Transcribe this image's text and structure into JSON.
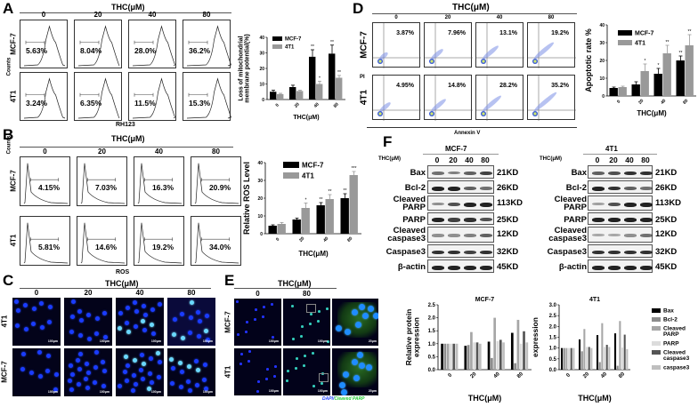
{
  "panels": {
    "A": {
      "label": "A",
      "title": "THC(μM)",
      "concentrations": [
        "0",
        "20",
        "40",
        "80"
      ],
      "rows": [
        {
          "name": "MCF-7",
          "values": [
            "5.63%",
            "8.04%",
            "28.0%",
            "36.2%"
          ]
        },
        {
          "name": "4T1",
          "values": [
            "3.24%",
            "6.35%",
            "11.5%",
            "15.3%"
          ]
        }
      ],
      "y_axis": "Counts",
      "x_axis": "RH123"
    },
    "B": {
      "label": "B",
      "title": "THC(μM)",
      "concentrations": [
        "0",
        "20",
        "40",
        "80"
      ],
      "rows": [
        {
          "name": "MCF-7",
          "values": [
            "4.15%",
            "7.03%",
            "16.3%",
            "20.9%"
          ]
        },
        {
          "name": "4T1",
          "values": [
            "5.81%",
            "14.6%",
            "19.2%",
            "34.0%"
          ]
        }
      ],
      "y_axis": "Counts",
      "x_axis": "ROS"
    },
    "C": {
      "label": "C",
      "title": "THC(μM)",
      "concentrations": [
        "0",
        "20",
        "40",
        "80"
      ],
      "rows": [
        "4T1",
        "MCF-7"
      ],
      "scale_bar": "100μm"
    },
    "D": {
      "label": "D",
      "title": "THC(μM)",
      "concentrations": [
        "0",
        "20",
        "40",
        "80"
      ],
      "rows": [
        {
          "name": "MCF-7",
          "values": [
            "3.87%",
            "7.96%",
            "13.1%",
            "19.2%"
          ]
        },
        {
          "name": "4T1",
          "values": [
            "4.95%",
            "14.8%",
            "28.2%",
            "35.2%"
          ]
        }
      ],
      "y_axis": "PI",
      "x_axis": "Annexin V"
    },
    "E": {
      "label": "E",
      "title": "THC(μM)",
      "concentrations": [
        "0",
        "80"
      ],
      "rows": [
        "MCF-7",
        "4T1"
      ],
      "scale_bar": "100μm",
      "scale_bar_zoom": "20μm",
      "stain_dapi": "DAPI/",
      "stain_parp": "Cleaved PARP"
    },
    "F": {
      "label": "F",
      "blots": [
        {
          "cell": "MCF-7",
          "thc_label": "THC(μM)",
          "concentrations": [
            "0",
            "20",
            "40",
            "80"
          ],
          "proteins": [
            {
              "name": "Bax",
              "kd": "21KD"
            },
            {
              "name": "Bcl-2",
              "kd": "26KD"
            },
            {
              "name": "Cleaved\nPARP",
              "kd": "113KD"
            },
            {
              "name": "PARP",
              "kd": "25KD"
            },
            {
              "name": "Cleaved\ncaspase3",
              "kd": "12KD"
            },
            {
              "name": "Caspase3",
              "kd": "32KD"
            },
            {
              "name": "β-actin",
              "kd": "45KD"
            }
          ]
        },
        {
          "cell": "4T1",
          "thc_label": "THC(μM)",
          "concentrations": [
            "0",
            "20",
            "40",
            "80"
          ],
          "proteins": [
            {
              "name": "Bax",
              "kd": "21KD"
            },
            {
              "name": "Bcl-2",
              "kd": "26KD"
            },
            {
              "name": "Cleaved\nPARP",
              "kd": "113KD"
            },
            {
              "name": "PARP",
              "kd": "25KD"
            },
            {
              "name": "Cleaved\ncaspase3",
              "kd": "12KD"
            },
            {
              "name": "Caspase3",
              "kd": "32KD"
            },
            {
              "name": "β-actin",
              "kd": "45KD"
            }
          ]
        }
      ]
    }
  },
  "chart_data": [
    {
      "id": "A-bar",
      "type": "bar",
      "title": "",
      "categories": [
        "0",
        "20",
        "40",
        "80"
      ],
      "series": [
        {
          "name": "MCF-7",
          "color": "#000000",
          "values": [
            5,
            8,
            27.5,
            29.5
          ],
          "errors": [
            1,
            1.2,
            4.5,
            5.5
          ],
          "sig": [
            "",
            "",
            "**",
            "**"
          ]
        },
        {
          "name": "4T1",
          "color": "#999999",
          "values": [
            3.5,
            5.5,
            10,
            14
          ],
          "errors": [
            0.5,
            0.5,
            1.8,
            1.5
          ],
          "sig": [
            "",
            "",
            "*",
            "**"
          ]
        }
      ],
      "xlabel": "THC(μM)",
      "ylabel": "Loss of mitochondrial membrane potential(%)",
      "ylim": [
        0,
        40
      ],
      "yticks": [
        0,
        10,
        20,
        30,
        40
      ],
      "legend_position": "top-left"
    },
    {
      "id": "B-bar",
      "type": "bar",
      "title": "",
      "categories": [
        "0",
        "20",
        "40",
        "80"
      ],
      "series": [
        {
          "name": "MCF-7",
          "color": "#000000",
          "values": [
            4.5,
            8,
            16,
            20
          ],
          "errors": [
            0.5,
            0.8,
            1.5,
            2.5
          ],
          "sig": [
            "",
            "",
            "**",
            "**"
          ]
        },
        {
          "name": "4T1",
          "color": "#999999",
          "values": [
            5.5,
            14.5,
            19.5,
            33
          ],
          "errors": [
            0.8,
            2.8,
            2.5,
            2.0
          ],
          "sig": [
            "",
            "*",
            "**",
            "***"
          ]
        }
      ],
      "xlabel": "THC(μM)",
      "ylabel": "Relative ROS Level",
      "ylim": [
        0,
        40
      ],
      "yticks": [
        0,
        10,
        20,
        30,
        40
      ],
      "legend_position": "top-left"
    },
    {
      "id": "D-bar",
      "type": "bar",
      "title": "",
      "categories": [
        "0",
        "20",
        "40",
        "80"
      ],
      "series": [
        {
          "name": "MCF-7",
          "color": "#000000",
          "values": [
            4.5,
            6.5,
            12.5,
            20
          ],
          "errors": [
            0.5,
            1.5,
            3,
            2.5
          ],
          "sig": [
            "",
            "",
            "*",
            "**"
          ]
        },
        {
          "name": "4T1",
          "color": "#999999",
          "values": [
            5,
            14,
            24,
            28.5
          ],
          "errors": [
            0.5,
            4,
            4.5,
            6
          ],
          "sig": [
            "",
            "*",
            "**",
            "**"
          ]
        }
      ],
      "xlabel": "THC(μM)",
      "ylabel": "Apoptotic rate %",
      "ylim": [
        0,
        40
      ],
      "yticks": [
        0,
        10,
        20,
        30,
        40
      ],
      "legend_position": "top-left"
    },
    {
      "id": "F-MCF7-bar",
      "type": "bar",
      "title": "MCF-7",
      "categories": [
        "0",
        "20",
        "40",
        "80"
      ],
      "series": [
        {
          "name": "Bax",
          "color": "#000000",
          "values": [
            1.0,
            0.92,
            1.08,
            1.42
          ]
        },
        {
          "name": "Bcl-2",
          "color": "#8c8c8c",
          "values": [
            1.0,
            0.95,
            0.45,
            0.25
          ]
        },
        {
          "name": "Cleaved PARP",
          "color": "#a6a6a6",
          "values": [
            1.0,
            1.45,
            2.0,
            1.92
          ]
        },
        {
          "name": "PARP",
          "color": "#dcdcdc",
          "values": [
            1.0,
            1.05,
            1.1,
            1.0
          ]
        },
        {
          "name": "Cleaved caspase3",
          "color": "#555555",
          "values": [
            1.0,
            1.05,
            1.15,
            1.48
          ]
        },
        {
          "name": "caspase3",
          "color": "#bfbfbf",
          "values": [
            1.0,
            1.0,
            1.05,
            1.05
          ]
        }
      ],
      "xlabel": "THC(μM)",
      "ylabel": "Relative protein expression",
      "ylim": [
        0,
        2.5
      ],
      "yticks": [
        0.0,
        0.5,
        1.0,
        1.5,
        2.0,
        2.5
      ]
    },
    {
      "id": "F-4T1-bar",
      "type": "bar",
      "title": "4T1",
      "categories": [
        "0",
        "20",
        "40",
        "80"
      ],
      "series": [
        {
          "name": "Bax",
          "color": "#000000",
          "values": [
            1.0,
            1.4,
            1.6,
            1.68
          ]
        },
        {
          "name": "Bcl-2",
          "color": "#8c8c8c",
          "values": [
            1.0,
            0.85,
            0.35,
            0.18
          ]
        },
        {
          "name": "Cleaved PARP",
          "color": "#a6a6a6",
          "values": [
            1.0,
            1.88,
            2.15,
            2.25
          ]
        },
        {
          "name": "PARP",
          "color": "#dcdcdc",
          "values": [
            1.0,
            1.05,
            1.05,
            1.02
          ]
        },
        {
          "name": "Cleaved caspase3",
          "color": "#555555",
          "values": [
            1.0,
            1.05,
            1.15,
            1.62
          ]
        },
        {
          "name": "caspase3",
          "color": "#bfbfbf",
          "values": [
            1.0,
            1.0,
            1.05,
            0.95
          ]
        }
      ],
      "xlabel": "THC(μM)",
      "ylabel": "Relative protein expression",
      "ylim": [
        0,
        3.0
      ],
      "yticks": [
        0.0,
        0.5,
        1.0,
        1.5,
        2.0,
        2.5,
        3.0
      ],
      "legend": [
        "Bax",
        "Bcl-2",
        "Cleaved PARP",
        "PARP",
        "Cleaved caspase3",
        "caspase3"
      ],
      "legend_position": "right"
    }
  ]
}
